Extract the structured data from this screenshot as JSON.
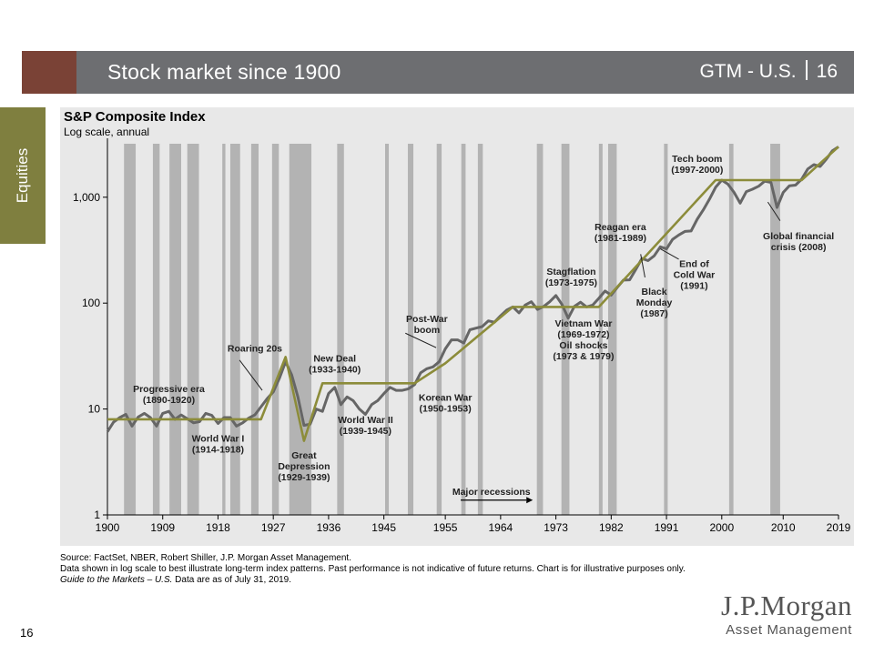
{
  "header": {
    "title": "Stock market since 1900",
    "section": "GTM - U.S.",
    "page": "16"
  },
  "side_tab": "Equities",
  "chart_data": {
    "type": "line",
    "title": "S&P Composite Index",
    "subtitle": "Log scale, annual",
    "y_scale": "log",
    "ylim": [
      1,
      3200
    ],
    "xlim": [
      1900,
      2019
    ],
    "x_ticks": [
      "1900",
      "1909",
      "1918",
      "1927",
      "1936",
      "1945",
      "1955",
      "1964",
      "1973",
      "1982",
      "1991",
      "2000",
      "2010",
      "2019"
    ],
    "y_ticks": [
      {
        "value": 1,
        "label": "1"
      },
      {
        "value": 10,
        "label": "10"
      },
      {
        "value": 100,
        "label": "100"
      },
      {
        "value": 1000,
        "label": "1,000"
      }
    ],
    "grid": false,
    "recessions": [
      [
        1902.7,
        1904.6
      ],
      [
        1907.4,
        1908.5
      ],
      [
        1910.1,
        1912.0
      ],
      [
        1913.0,
        1914.9
      ],
      [
        1918.7,
        1919.2
      ],
      [
        1920.0,
        1921.6
      ],
      [
        1923.4,
        1924.6
      ],
      [
        1926.8,
        1927.9
      ],
      [
        1929.6,
        1933.2
      ],
      [
        1937.4,
        1938.5
      ],
      [
        1945.2,
        1945.8
      ],
      [
        1948.9,
        1949.8
      ],
      [
        1953.6,
        1954.4
      ],
      [
        1957.6,
        1958.3
      ],
      [
        1960.3,
        1961.1
      ],
      [
        1969.9,
        1970.9
      ],
      [
        1973.9,
        1975.2
      ],
      [
        1980.0,
        1980.6
      ],
      [
        1981.5,
        1982.9
      ],
      [
        1990.6,
        1991.2
      ],
      [
        2001.2,
        2001.9
      ],
      [
        2007.9,
        2009.5
      ]
    ],
    "series": [
      {
        "role": "index",
        "color": "#666666",
        "points": [
          [
            1900,
            6.1
          ],
          [
            1901,
            7.5
          ],
          [
            1902,
            8.3
          ],
          [
            1903,
            8.9
          ],
          [
            1904,
            6.9
          ],
          [
            1905,
            8.4
          ],
          [
            1906,
            9.1
          ],
          [
            1907,
            8.3
          ],
          [
            1908,
            6.9
          ],
          [
            1909,
            9.1
          ],
          [
            1910,
            9.5
          ],
          [
            1911,
            8.0
          ],
          [
            1912,
            8.8
          ],
          [
            1913,
            8.1
          ],
          [
            1914,
            7.4
          ],
          [
            1915,
            7.6
          ],
          [
            1916,
            9.1
          ],
          [
            1917,
            8.7
          ],
          [
            1918,
            7.3
          ],
          [
            1919,
            8.3
          ],
          [
            1920,
            8.3
          ],
          [
            1921,
            6.9
          ],
          [
            1922,
            7.4
          ],
          [
            1923,
            8.2
          ],
          [
            1924,
            8.8
          ],
          [
            1925,
            10.5
          ],
          [
            1926,
            12.5
          ],
          [
            1927,
            14.5
          ],
          [
            1928,
            19.5
          ],
          [
            1929,
            28
          ],
          [
            1930,
            21
          ],
          [
            1931,
            13
          ],
          [
            1932,
            7
          ],
          [
            1933,
            7.2
          ],
          [
            1934,
            10
          ],
          [
            1935,
            9.5
          ],
          [
            1936,
            14
          ],
          [
            1937,
            16
          ],
          [
            1938,
            11
          ],
          [
            1939,
            13
          ],
          [
            1940,
            12
          ],
          [
            1941,
            10
          ],
          [
            1942,
            8.9
          ],
          [
            1943,
            11
          ],
          [
            1944,
            12
          ],
          [
            1945,
            14
          ],
          [
            1946,
            16
          ],
          [
            1947,
            15
          ],
          [
            1948,
            15
          ],
          [
            1949,
            15.5
          ],
          [
            1950,
            17
          ],
          [
            1951,
            22
          ],
          [
            1952,
            24
          ],
          [
            1953,
            25
          ],
          [
            1954,
            28
          ],
          [
            1955,
            37
          ],
          [
            1956,
            45
          ],
          [
            1957,
            45
          ],
          [
            1958,
            42
          ],
          [
            1959,
            56
          ],
          [
            1960,
            58
          ],
          [
            1961,
            60
          ],
          [
            1962,
            68
          ],
          [
            1963,
            66
          ],
          [
            1964,
            76
          ],
          [
            1965,
            86
          ],
          [
            1966,
            92
          ],
          [
            1967,
            81
          ],
          [
            1968,
            96
          ],
          [
            1969,
            103
          ],
          [
            1970,
            87
          ],
          [
            1971,
            93
          ],
          [
            1972,
            103
          ],
          [
            1973,
            118
          ],
          [
            1974,
            97
          ],
          [
            1975,
            72
          ],
          [
            1976,
            93
          ],
          [
            1977,
            102
          ],
          [
            1978,
            92
          ],
          [
            1979,
            96
          ],
          [
            1980,
            111
          ],
          [
            1981,
            130
          ],
          [
            1982,
            119
          ],
          [
            1983,
            141
          ],
          [
            1984,
            165
          ],
          [
            1985,
            166
          ],
          [
            1986,
            208
          ],
          [
            1987,
            264
          ],
          [
            1988,
            252
          ],
          [
            1989,
            280
          ],
          [
            1990,
            340
          ],
          [
            1991,
            325
          ],
          [
            1992,
            400
          ],
          [
            1993,
            440
          ],
          [
            1994,
            475
          ],
          [
            1995,
            480
          ],
          [
            1996,
            620
          ],
          [
            1997,
            760
          ],
          [
            1998,
            960
          ],
          [
            1999,
            1240
          ],
          [
            2000,
            1450
          ],
          [
            2001,
            1330
          ],
          [
            2002,
            1110
          ],
          [
            2003,
            880
          ],
          [
            2004,
            1130
          ],
          [
            2005,
            1190
          ],
          [
            2006,
            1270
          ],
          [
            2007,
            1420
          ],
          [
            2008,
            1380
          ],
          [
            2009,
            800
          ],
          [
            2010,
            1110
          ],
          [
            2011,
            1280
          ],
          [
            2012,
            1300
          ],
          [
            2013,
            1480
          ],
          [
            2014,
            1850
          ],
          [
            2015,
            2030
          ],
          [
            2016,
            1950
          ],
          [
            2017,
            2280
          ],
          [
            2018,
            2750
          ],
          [
            2019,
            2990
          ]
        ]
      },
      {
        "role": "trend",
        "color": "#8c8c3a",
        "points": [
          [
            1900,
            8
          ],
          [
            1925,
            8
          ],
          [
            1929,
            31
          ],
          [
            1932,
            5
          ],
          [
            1935,
            17.5
          ],
          [
            1950,
            17.5
          ],
          [
            1955,
            27
          ],
          [
            1966,
            92
          ],
          [
            1980,
            92
          ],
          [
            1999,
            1450
          ],
          [
            2013,
            1450
          ],
          [
            2019,
            3000
          ]
        ]
      }
    ],
    "annotations": [
      {
        "lines": [
          "Progressive era",
          "(1890-1920)"
        ],
        "x": 1910,
        "y": 14.5
      },
      {
        "lines": [
          "World War I",
          "(1914-1918)"
        ],
        "x": 1918,
        "y": 4.9
      },
      {
        "lines": [
          "Roaring 20s"
        ],
        "x": 1924,
        "y": 35
      },
      {
        "lines": [
          "Great",
          "Depression",
          "(1929-1939)"
        ],
        "x": 1932,
        "y": 3.4
      },
      {
        "lines": [
          "New Deal",
          "(1933-1940)"
        ],
        "x": 1937,
        "y": 28
      },
      {
        "lines": [
          "World War II",
          "(1939-1945)"
        ],
        "x": 1942,
        "y": 7.4
      },
      {
        "lines": [
          "Post-War",
          "boom"
        ],
        "x": 1952,
        "y": 66
      },
      {
        "lines": [
          "Korean War",
          "(1950-1953)"
        ],
        "x": 1955,
        "y": 12
      },
      {
        "lines": [
          "Stagflation",
          "(1973-1975)"
        ],
        "x": 1975.5,
        "y": 185
      },
      {
        "lines": [
          "Vietnam War",
          "(1969-1972)",
          "Oil shocks",
          "(1973 & 1979)"
        ],
        "x": 1977.5,
        "y": 60
      },
      {
        "lines": [
          "Reagan era",
          "(1981-1989)"
        ],
        "x": 1983.5,
        "y": 490
      },
      {
        "lines": [
          "Tech boom",
          "(1997-2000)"
        ],
        "x": 1996,
        "y": 2150
      },
      {
        "lines": [
          "Black",
          "Monday",
          "(1987)"
        ],
        "x": 1989,
        "y": 120
      },
      {
        "lines": [
          "End of",
          "Cold War",
          "(1991)"
        ],
        "x": 1995.5,
        "y": 220
      },
      {
        "lines": [
          "Global financial",
          "crisis (2008)"
        ],
        "x": 2012.5,
        "y": 400
      },
      {
        "lines": [
          "Major recessions"
        ],
        "x": 1962.5,
        "y": 1.55
      }
    ]
  },
  "source_lines": [
    "Source: FactSet, NBER, Robert Shiller, J.P. Morgan Asset Management.",
    "Data shown in log scale to best illustrate long-term index patterns. Past performance is not indicative of future returns. Chart is for illustrative purposes only."
  ],
  "source_italic": "Guide to the Markets – U.S.",
  "source_tail": " Data are as of July 31, 2019.",
  "footer": {
    "page_number": "16",
    "logo_line1": "J.P.Morgan",
    "logo_line2": "Asset Management"
  }
}
